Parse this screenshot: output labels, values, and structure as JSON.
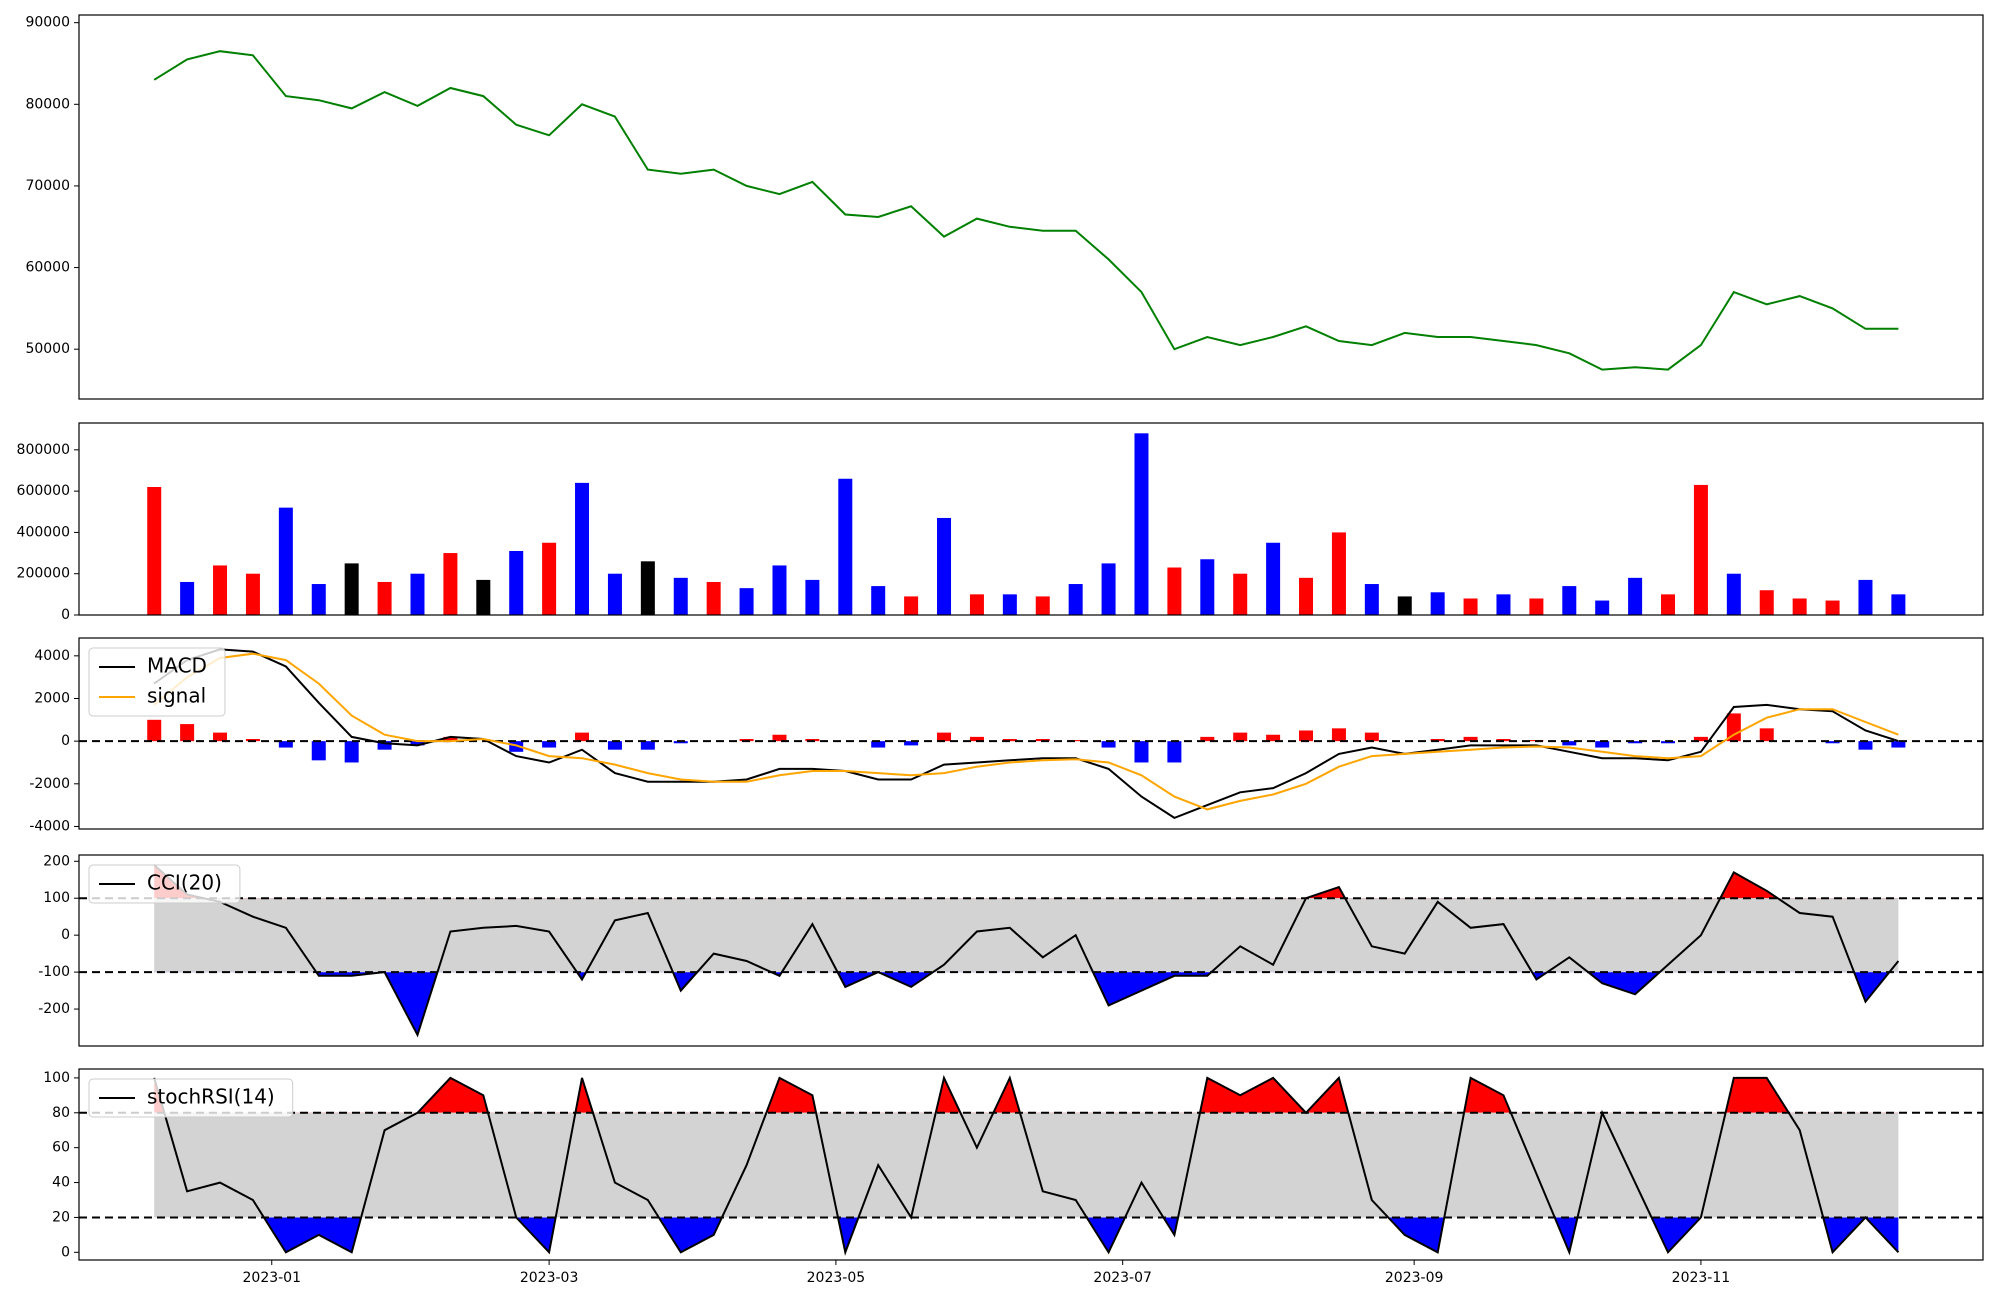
{
  "chart_data": [
    {
      "type": "line",
      "x": [
        "2022-12-07",
        "2022-12-14",
        "2022-12-21",
        "2022-12-28",
        "2023-01-04",
        "2023-01-11",
        "2023-01-18",
        "2023-01-25",
        "2023-02-01",
        "2023-02-08",
        "2023-02-15",
        "2023-02-22",
        "2023-03-01",
        "2023-03-08",
        "2023-03-15",
        "2023-03-22",
        "2023-03-29",
        "2023-04-05",
        "2023-04-12",
        "2023-04-19",
        "2023-04-26",
        "2023-05-03",
        "2023-05-10",
        "2023-05-17",
        "2023-05-24",
        "2023-05-31",
        "2023-06-07",
        "2023-06-14",
        "2023-06-21",
        "2023-06-28",
        "2023-07-05",
        "2023-07-12",
        "2023-07-19",
        "2023-07-26",
        "2023-08-02",
        "2023-08-09",
        "2023-08-16",
        "2023-08-23",
        "2023-08-30",
        "2023-09-06",
        "2023-09-13",
        "2023-09-20",
        "2023-09-27",
        "2023-10-04",
        "2023-10-11",
        "2023-10-18",
        "2023-10-25",
        "2023-11-01",
        "2023-11-08",
        "2023-11-15",
        "2023-11-22",
        "2023-11-29",
        "2023-12-06",
        "2023-12-13"
      ],
      "xlim": [
        "2022-11-21",
        "2023-12-31"
      ],
      "ylim": [
        43900,
        90940
      ],
      "yticks": [
        50000,
        60000,
        70000,
        80000,
        90000
      ],
      "series": [
        {
          "color": "green",
          "values": [
            83000,
            85500,
            86500,
            86000,
            81000,
            80500,
            79500,
            81500,
            79800,
            82000,
            81000,
            77500,
            76200,
            80000,
            78500,
            72000,
            71500,
            72000,
            70000,
            69000,
            70500,
            66500,
            66200,
            67500,
            63800,
            66000,
            65000,
            64500,
            64500,
            61000,
            57000,
            50000,
            51500,
            50500,
            51500,
            52800,
            51000,
            50500,
            52000,
            51500,
            51500,
            51000,
            50500,
            49500,
            47500,
            47800,
            47500,
            50500,
            57000,
            55500,
            56500,
            55000,
            52500,
            52500
          ]
        }
      ]
    },
    {
      "type": "bar",
      "ylim": [
        0,
        930000
      ],
      "yticks": [
        0,
        200000,
        400000,
        600000,
        800000
      ],
      "values": [
        620000,
        160000,
        240000,
        200000,
        520000,
        150000,
        250000,
        160000,
        200000,
        300000,
        170000,
        310000,
        350000,
        640000,
        200000,
        260000,
        180000,
        160000,
        130000,
        240000,
        170000,
        660000,
        140000,
        90000,
        470000,
        100000,
        100000,
        90000,
        150000,
        250000,
        880000,
        230000,
        270000,
        200000,
        350000,
        180000,
        400000,
        150000,
        90000,
        110000,
        80000,
        100000,
        80000,
        140000,
        70000,
        180000,
        100000,
        630000,
        200000,
        120000,
        80000,
        70000,
        170000,
        100000
      ],
      "colors": [
        "red",
        "blue",
        "red",
        "red",
        "blue",
        "blue",
        "black",
        "red",
        "blue",
        "red",
        "black",
        "blue",
        "red",
        "blue",
        "blue",
        "black",
        "blue",
        "red",
        "blue",
        "blue",
        "blue",
        "blue",
        "blue",
        "red",
        "blue",
        "red",
        "blue",
        "red",
        "blue",
        "blue",
        "blue",
        "red",
        "blue",
        "red",
        "blue",
        "red",
        "red",
        "blue",
        "black",
        "blue",
        "red",
        "blue",
        "red",
        "blue",
        "blue",
        "blue",
        "red",
        "red",
        "blue",
        "red",
        "red",
        "red",
        "blue",
        "blue"
      ]
    },
    {
      "type": "macd",
      "ylim": [
        -4119,
        4836
      ],
      "yticks": [
        -4000,
        -2000,
        0,
        2000,
        4000
      ],
      "hlines": [
        0
      ],
      "legend": "upper left",
      "series": [
        {
          "name": "MACD",
          "color": "black",
          "values": [
            2700,
            3800,
            4300,
            4200,
            3500,
            1800,
            200,
            -100,
            -200,
            200,
            100,
            -700,
            -1000,
            -400,
            -1500,
            -1900,
            -1900,
            -1900,
            -1800,
            -1300,
            -1300,
            -1400,
            -1800,
            -1800,
            -1100,
            -1000,
            -900,
            -800,
            -800,
            -1300,
            -2600,
            -3600,
            -3000,
            -2400,
            -2200,
            -1500,
            -600,
            -300,
            -600,
            -400,
            -200,
            -200,
            -200,
            -500,
            -800,
            -800,
            -900,
            -500,
            1600,
            1700,
            1500,
            1400,
            500,
            0
          ]
        },
        {
          "name": "signal",
          "color": "orange",
          "values": [
            1700,
            3000,
            3900,
            4100,
            3800,
            2700,
            1200,
            300,
            0,
            0,
            100,
            -200,
            -700,
            -800,
            -1100,
            -1500,
            -1800,
            -1900,
            -1900,
            -1600,
            -1400,
            -1400,
            -1500,
            -1600,
            -1500,
            -1200,
            -1000,
            -900,
            -850,
            -1000,
            -1600,
            -2600,
            -3200,
            -2800,
            -2500,
            -2000,
            -1200,
            -700,
            -600,
            -500,
            -400,
            -300,
            -250,
            -300,
            -500,
            -700,
            -800,
            -700,
            300,
            1100,
            1500,
            1500,
            900,
            300
          ]
        },
        {
          "type": "bar",
          "pos_color": "red",
          "neg_color": "blue",
          "values": [
            1000,
            800,
            400,
            100,
            -300,
            -900,
            -1000,
            -400,
            -200,
            200,
            0,
            -500,
            -300,
            400,
            -400,
            -400,
            -100,
            0,
            100,
            300,
            100,
            0,
            -300,
            -200,
            400,
            200,
            100,
            100,
            50,
            -300,
            -1000,
            -1000,
            200,
            400,
            300,
            500,
            600,
            400,
            0,
            100,
            200,
            100,
            50,
            -200,
            -300,
            -100,
            -100,
            200,
            1300,
            600,
            0,
            -100,
            -400,
            -300
          ]
        }
      ]
    },
    {
      "type": "oscillator",
      "ylim": [
        -300,
        217
      ],
      "yticks": [
        -200,
        -100,
        0,
        100,
        200
      ],
      "hlines": [
        100,
        -100
      ],
      "band_color": "lightgray",
      "above_color": "red",
      "below_color": "blue",
      "legend": "upper left",
      "series": [
        {
          "name": "CCI(20)",
          "color": "black",
          "values": [
            190,
            110,
            90,
            50,
            20,
            -110,
            -110,
            -100,
            -270,
            10,
            20,
            25,
            10,
            -120,
            40,
            60,
            -150,
            -50,
            -70,
            -110,
            30,
            -140,
            -100,
            -140,
            -80,
            10,
            20,
            -60,
            0,
            -190,
            -150,
            -110,
            -110,
            -30,
            -80,
            100,
            130,
            -30,
            -50,
            90,
            20,
            30,
            -120,
            -60,
            -130,
            -160,
            -80,
            0,
            170,
            120,
            60,
            50,
            -180,
            -70
          ]
        }
      ]
    },
    {
      "type": "oscillator",
      "ylim": [
        -4.4,
        105.1
      ],
      "yticks": [
        0,
        20,
        40,
        60,
        80,
        100
      ],
      "xticks": [
        {
          "value": "2023-01-01",
          "label": "2023-01"
        },
        {
          "value": "2023-03-01",
          "label": "2023-03"
        },
        {
          "value": "2023-05-01",
          "label": "2023-05"
        },
        {
          "value": "2023-07-01",
          "label": "2023-07"
        },
        {
          "value": "2023-09-01",
          "label": "2023-09"
        },
        {
          "value": "2023-11-01",
          "label": "2023-11"
        }
      ],
      "hlines": [
        80,
        20
      ],
      "band_color": "lightgray",
      "above_color": "red",
      "below_color": "blue",
      "legend": "upper left",
      "series": [
        {
          "name": "stochRSI(14)",
          "color": "black",
          "values": [
            100,
            35,
            40,
            30,
            0,
            10,
            0,
            70,
            80,
            100,
            90,
            20,
            0,
            100,
            40,
            30,
            0,
            10,
            50,
            100,
            90,
            0,
            50,
            20,
            100,
            60,
            100,
            35,
            30,
            0,
            40,
            10,
            100,
            90,
            100,
            80,
            100,
            30,
            10,
            0,
            100,
            90,
            45,
            0,
            80,
            40,
            0,
            20,
            100,
            100,
            70,
            0,
            20,
            0
          ]
        }
      ]
    }
  ]
}
